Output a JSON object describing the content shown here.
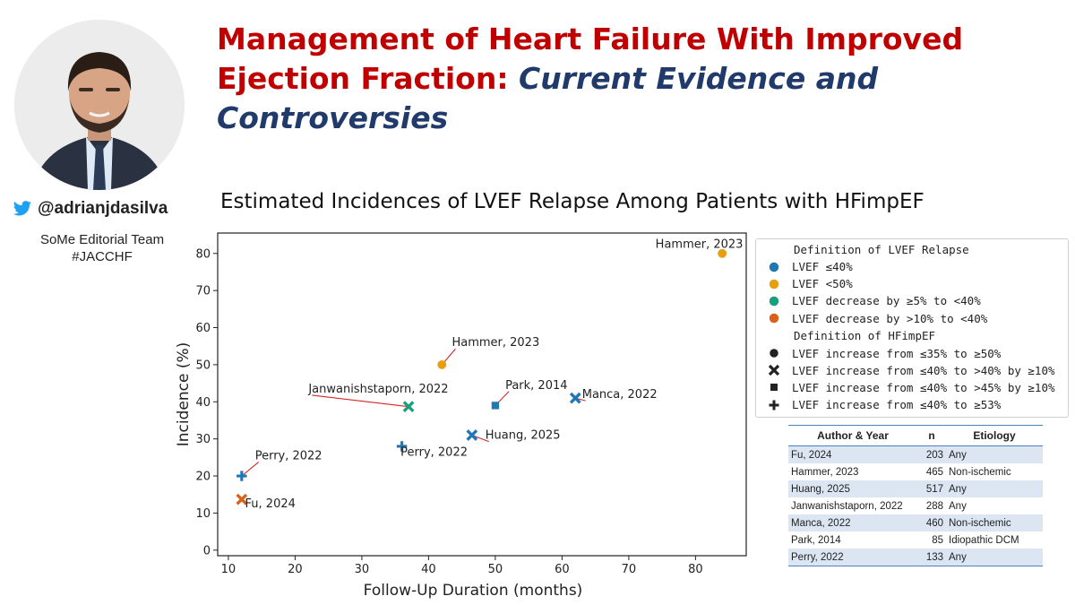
{
  "header": {
    "title_part1": "Management of Heart Failure With Improved Ejection Fraction: ",
    "title_part2": "Current Evidence and Controversies"
  },
  "author": {
    "handle": "@adrianjdasilva",
    "team_line1": "SoMe Editorial Team",
    "team_line2": "#JACCHF"
  },
  "colors": {
    "title_red": "#c00000",
    "title_blue": "#1f3a6b",
    "blue": "#1f77b4",
    "yellow": "#e6a00f",
    "green": "#19a07a",
    "orange": "#d9621a"
  },
  "chart_data": {
    "type": "scatter",
    "title": "Estimated Incidences of LVEF Relapse Among Patients with HFimpEF",
    "xlabel": "Follow-Up Duration (months)",
    "ylabel": "Incidence (%)",
    "xlim": [
      8.4,
      87.6
    ],
    "ylim": [
      -1.5,
      85.5
    ],
    "xticks": [
      10,
      20,
      30,
      40,
      50,
      60,
      70,
      80
    ],
    "yticks": [
      0,
      10,
      20,
      30,
      40,
      50,
      60,
      70,
      80
    ],
    "ytick_suffix": "",
    "points": [
      {
        "label": "Fu, 2024",
        "x": 12,
        "y": 13.7,
        "relapse": "orange",
        "marker": "x",
        "lx": 12.5,
        "ly": 11.6,
        "line": false
      },
      {
        "label": "Perry, 2022",
        "x": 12,
        "y": 20,
        "relapse": "blue",
        "marker": "plus",
        "lx": 14,
        "ly": 24.5,
        "line": true
      },
      {
        "label": "Perry, 2022",
        "x": 36,
        "y": 28,
        "relapse": "blue",
        "marker": "plus",
        "lx": 35.8,
        "ly": 25.5,
        "line": false
      },
      {
        "label": "Huang, 2025",
        "x": 46.5,
        "y": 31,
        "relapse": "blue",
        "marker": "x",
        "lx": 48.5,
        "ly": 30,
        "line": true
      },
      {
        "label": "Janwanishstaporn, 2022",
        "x": 37,
        "y": 38.7,
        "relapse": "green",
        "marker": "x",
        "lx": 22,
        "ly": 42.5,
        "line": true
      },
      {
        "label": "Park, 2014",
        "x": 50,
        "y": 39,
        "relapse": "blue",
        "marker": "square",
        "lx": 51.5,
        "ly": 43.5,
        "line": true
      },
      {
        "label": "Manca, 2022",
        "x": 62,
        "y": 41,
        "relapse": "blue",
        "marker": "x",
        "lx": 63,
        "ly": 41,
        "line": true
      },
      {
        "label": "Hammer, 2023",
        "x": 42,
        "y": 50,
        "relapse": "yellow",
        "marker": "circle",
        "lx": 43.5,
        "ly": 55,
        "line": true
      },
      {
        "label": "Hammer, 2023",
        "x": 84,
        "y": 80,
        "relapse": "yellow",
        "marker": "circle",
        "lx": 74,
        "ly": 81.5,
        "line": false
      }
    ]
  },
  "legend": {
    "relapse_header": "Definition of LVEF Relapse",
    "relapse_items": [
      {
        "label": "LVEF ≤40%",
        "color": "#1f77b4"
      },
      {
        "label": "LVEF <50%",
        "color": "#e6a00f"
      },
      {
        "label": "LVEF decrease by ≥5% to <40%",
        "color": "#19a07a"
      },
      {
        "label": "LVEF decrease by >10% to <40%",
        "color": "#d9621a"
      }
    ],
    "hfimpef_header": "Definition of HFimpEF",
    "hfimpef_items": [
      {
        "label": "LVEF increase from ≤35% to ≥50%",
        "marker": "circle"
      },
      {
        "label": "LVEF increase from ≤40% to >40% by ≥10%",
        "marker": "x"
      },
      {
        "label": "LVEF increase from ≤40% to >45% by ≥10%",
        "marker": "square"
      },
      {
        "label": "LVEF increase from ≤40% to ≥53%",
        "marker": "plus"
      }
    ]
  },
  "table": {
    "headers": [
      "Author & Year",
      "n",
      "Etiology"
    ],
    "rows": [
      [
        "Fu, 2024",
        "203",
        "Any"
      ],
      [
        "Hammer, 2023",
        "465",
        "Non-ischemic"
      ],
      [
        "Huang, 2025",
        "517",
        "Any"
      ],
      [
        "Janwanishstaporn, 2022",
        "288",
        "Any"
      ],
      [
        "Manca, 2022",
        "460",
        "Non-ischemic"
      ],
      [
        "Park, 2014",
        "85",
        "Idiopathic DCM"
      ],
      [
        "Perry, 2022",
        "133",
        "Any"
      ]
    ]
  }
}
